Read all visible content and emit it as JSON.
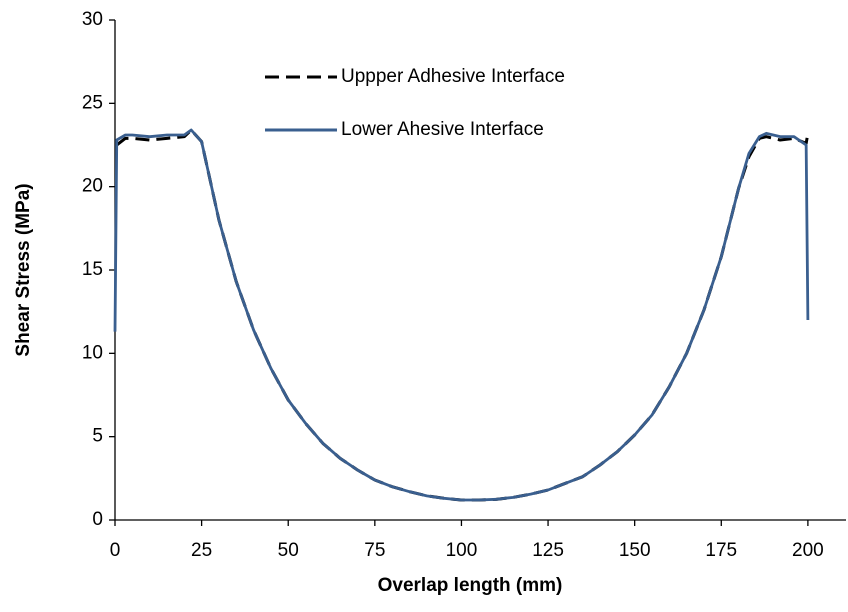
{
  "chart_data": {
    "type": "line",
    "xlabel": "Overlap length (mm)",
    "ylabel": "Shear Stress (MPa)",
    "x": [
      0,
      0.5,
      3,
      5,
      10,
      15,
      20,
      22,
      25,
      30,
      35,
      40,
      45,
      50,
      55,
      60,
      65,
      70,
      75,
      80,
      85,
      90,
      95,
      100,
      105,
      110,
      115,
      120,
      125,
      130,
      135,
      140,
      145,
      150,
      155,
      160,
      165,
      170,
      175,
      180,
      183,
      186,
      188,
      192,
      196,
      199.5,
      200
    ],
    "series": [
      {
        "name": "Uppper Adhesive Interface",
        "color": "#000000",
        "dash": true,
        "values": [
          null,
          22.5,
          22.9,
          22.9,
          22.8,
          22.9,
          23.0,
          23.4,
          22.7,
          18.0,
          14.3,
          11.4,
          9.1,
          7.2,
          5.8,
          4.6,
          3.7,
          3.0,
          2.4,
          2.0,
          1.7,
          1.45,
          1.3,
          1.2,
          1.2,
          1.24,
          1.36,
          1.55,
          1.8,
          2.2,
          2.6,
          3.3,
          4.1,
          5.1,
          6.3,
          8.0,
          10.0,
          12.6,
          15.8,
          19.9,
          21.8,
          22.9,
          23.0,
          22.8,
          22.9,
          22.6,
          23.2
        ]
      },
      {
        "name": "Lower Ahesive Interface",
        "color": "#3a5f8f",
        "dash": false,
        "values": [
          11.3,
          22.8,
          23.1,
          23.1,
          23.0,
          23.1,
          23.1,
          23.4,
          22.7,
          18.0,
          14.3,
          11.4,
          9.1,
          7.2,
          5.8,
          4.6,
          3.7,
          3.0,
          2.4,
          2.0,
          1.7,
          1.45,
          1.3,
          1.2,
          1.2,
          1.24,
          1.36,
          1.55,
          1.8,
          2.2,
          2.6,
          3.3,
          4.1,
          5.1,
          6.3,
          8.0,
          10.0,
          12.6,
          15.8,
          19.9,
          22.0,
          23.0,
          23.2,
          23.0,
          23.0,
          22.5,
          12
        ]
      }
    ],
    "xlim": [
      0,
      211
    ],
    "xticks": [
      0,
      25,
      50,
      75,
      100,
      125,
      150,
      175,
      200
    ],
    "ylim": [
      0,
      30
    ],
    "yticks": [
      0,
      5,
      10,
      15,
      20,
      25,
      30
    ],
    "grid": false,
    "legend": "upper-center"
  }
}
